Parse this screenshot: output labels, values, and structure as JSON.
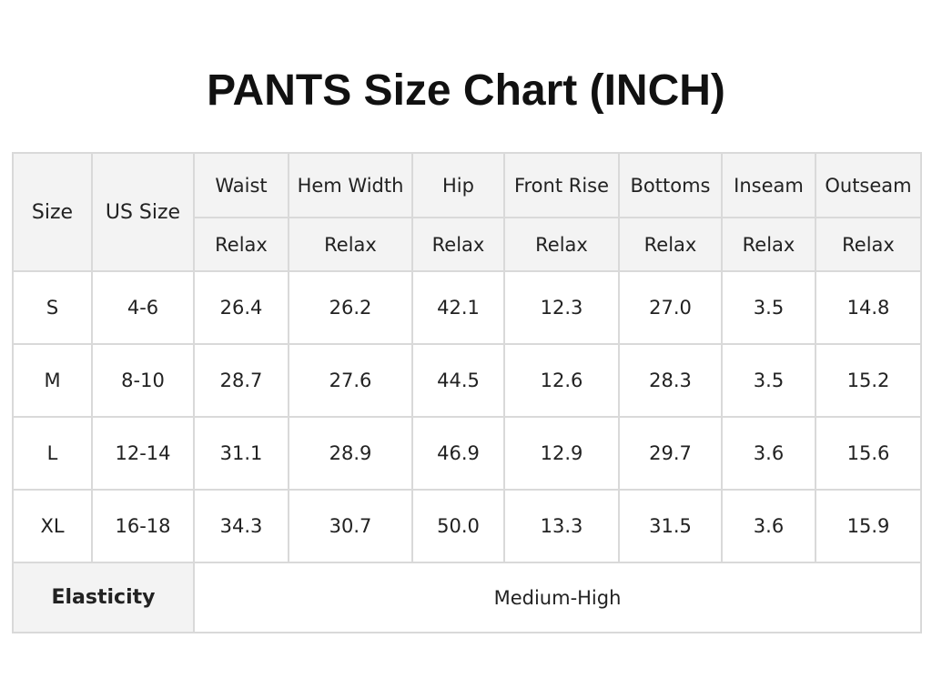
{
  "title": "PANTS Size Chart (INCH)",
  "table": {
    "header": {
      "size": "Size",
      "us_size": "US Size",
      "columns": [
        "Waist",
        "Hem Width",
        "Hip",
        "Front Rise",
        "Bottoms",
        "Inseam",
        "Outseam"
      ],
      "sub": [
        "Relax",
        "Relax",
        "Relax",
        "Relax",
        "Relax",
        "Relax",
        "Relax"
      ]
    },
    "rows": [
      [
        "S",
        "4-6",
        "26.4",
        "26.2",
        "42.1",
        "12.3",
        "27.0",
        "3.5",
        "14.8"
      ],
      [
        "M",
        "8-10",
        "28.7",
        "27.6",
        "44.5",
        "12.6",
        "28.3",
        "3.5",
        "15.2"
      ],
      [
        "L",
        "12-14",
        "31.1",
        "28.9",
        "46.9",
        "12.9",
        "29.7",
        "3.6",
        "15.6"
      ],
      [
        "XL",
        "16-18",
        "34.3",
        "30.7",
        "50.0",
        "13.3",
        "31.5",
        "3.6",
        "15.9"
      ]
    ],
    "footer": {
      "label": "Elasticity",
      "value": "Medium-High"
    }
  }
}
